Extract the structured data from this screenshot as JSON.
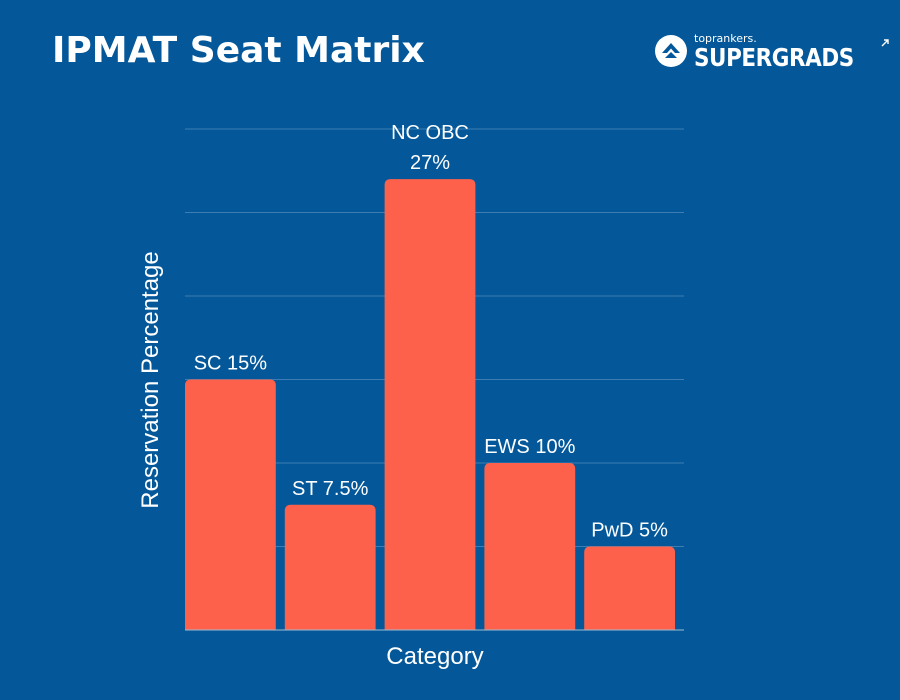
{
  "header": {
    "title": "IPMAT Seat Matrix",
    "logo_small": "toprankers.",
    "logo_main": "SUPERGRADS"
  },
  "colors": {
    "background": "#04589a",
    "bar": "#fd614b",
    "text": "#ffffff"
  },
  "chart_data": {
    "type": "bar",
    "title": "IPMAT Seat Matrix",
    "xlabel": "Category",
    "ylabel": "Reservation Percentage",
    "ylim": [
      0,
      30
    ],
    "grid": true,
    "categories": [
      "SC",
      "ST",
      "NC OBC",
      "EWS",
      "PwD"
    ],
    "values": [
      15,
      7.5,
      27,
      10,
      5
    ],
    "data_labels": [
      "SC 15%",
      "ST 7.5%",
      "27%",
      "EWS 10%",
      "PwD 5%"
    ],
    "top_label_extra": [
      "",
      "",
      "NC OBC",
      "",
      ""
    ]
  }
}
